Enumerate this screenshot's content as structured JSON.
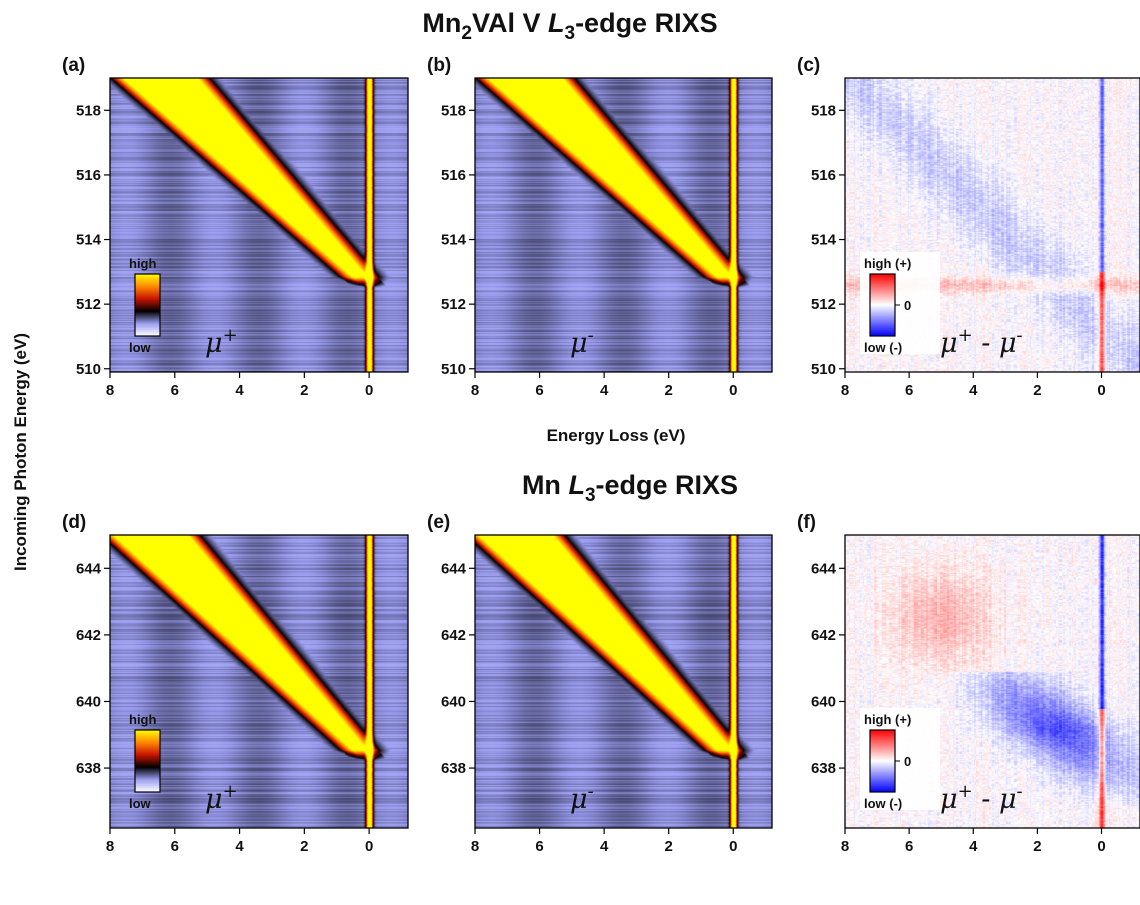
{
  "chart_data": {
    "type": "heatmap",
    "title_top": {
      "pre": "Mn",
      "sub": "2",
      "mid": "VAl V ",
      "edge_i": "L",
      "edge_sub": "3",
      "post": "-edge RIXS"
    },
    "title_bottom": {
      "pre": "Mn ",
      "edge_i": "L",
      "edge_sub": "3",
      "post": "-edge RIXS"
    },
    "xlabel": "Energy Loss (eV)",
    "ylabel": "Incoming Photon Energy (eV)",
    "xlim": [
      8,
      -1.2
    ],
    "x_ticks": [
      8,
      6,
      4,
      2,
      0
    ],
    "rows": [
      {
        "ylim": [
          509.9,
          519
        ],
        "y_ticks": [
          510,
          512,
          514,
          516,
          518
        ],
        "edge_energy": 512.7
      },
      {
        "ylim": [
          636.2,
          645
        ],
        "y_ticks": [
          638,
          640,
          642,
          644
        ],
        "edge_energy": 638.4
      }
    ],
    "panels": [
      {
        "id": "a",
        "label": "(a)",
        "row": 0,
        "col": 0,
        "kind": "intensity",
        "polarization": "μ+",
        "mu_base": "μ",
        "mu_sup": "+",
        "mu_sup2": "",
        "colorbar": {
          "high": "high",
          "low": "low",
          "zero": ""
        }
      },
      {
        "id": "b",
        "label": "(b)",
        "row": 0,
        "col": 1,
        "kind": "intensity",
        "polarization": "μ-",
        "mu_base": "μ",
        "mu_sup": "-",
        "mu_sup2": ""
      },
      {
        "id": "c",
        "label": "(c)",
        "row": 0,
        "col": 2,
        "kind": "difference",
        "polarization": "μ+ - μ-",
        "mu_base": "μ",
        "mu_sup": "+",
        "mu_sup2": "-",
        "colorbar": {
          "high": "high (+)",
          "low": "low (-)",
          "zero": "0"
        }
      },
      {
        "id": "d",
        "label": "(d)",
        "row": 1,
        "col": 0,
        "kind": "intensity",
        "polarization": "μ+",
        "mu_base": "μ",
        "mu_sup": "+",
        "mu_sup2": "",
        "colorbar": {
          "high": "high",
          "low": "low",
          "zero": ""
        }
      },
      {
        "id": "e",
        "label": "(e)",
        "row": 1,
        "col": 1,
        "kind": "intensity",
        "polarization": "μ-",
        "mu_base": "μ",
        "mu_sup": "-",
        "mu_sup2": ""
      },
      {
        "id": "f",
        "label": "(f)",
        "row": 1,
        "col": 2,
        "kind": "difference",
        "polarization": "μ+ - μ-",
        "mu_base": "μ",
        "mu_sup": "+",
        "mu_sup2": "-",
        "colorbar": {
          "high": "high (+)",
          "low": "low (-)",
          "zero": "0"
        }
      }
    ],
    "colormaps": {
      "intensity": [
        "#ffffff",
        "#9a9cf0",
        "#000000",
        "#c81400",
        "#ff8800",
        "#ffff00"
      ],
      "difference": [
        "#0000ff",
        "#ffffff",
        "#ff0000"
      ]
    }
  }
}
